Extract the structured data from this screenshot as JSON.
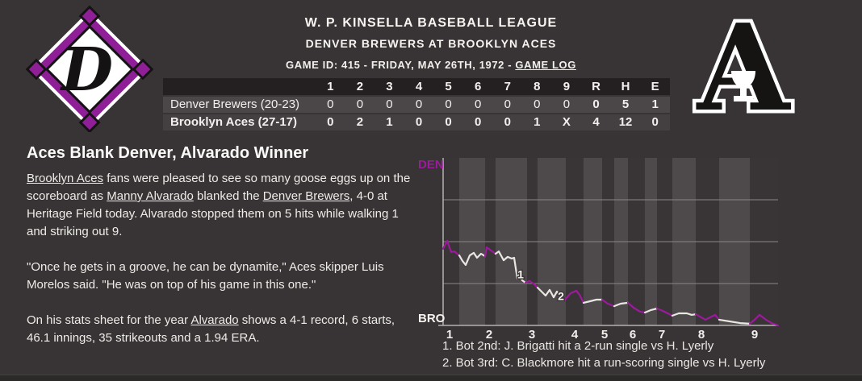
{
  "header": {
    "league_title": "W. P. KINSELLA BASEBALL LEAGUE",
    "matchup": "DENVER BREWERS AT BROOKLYN ACES",
    "game_info_prefix": "GAME ID: 415 - FRIDAY, MAY 26TH, 1972 - ",
    "game_log_link": "GAME LOG"
  },
  "logos": {
    "away_team": "Denver Brewers",
    "away_letter": "D",
    "away_color": "#8e1f96",
    "home_team": "Brooklyn Aces",
    "home_letter": "A"
  },
  "scoreboard": {
    "columns": [
      "1",
      "2",
      "3",
      "4",
      "5",
      "6",
      "7",
      "8",
      "9",
      "R",
      "H",
      "E"
    ],
    "rows": [
      {
        "team": "Denver Brewers (20-23)",
        "bold": false,
        "cells": [
          "0",
          "0",
          "0",
          "0",
          "0",
          "0",
          "0",
          "0",
          "0",
          "0",
          "5",
          "1"
        ]
      },
      {
        "team": "Brooklyn Aces (27-17)",
        "bold": true,
        "cells": [
          "0",
          "2",
          "1",
          "0",
          "0",
          "0",
          "0",
          "1",
          "X",
          "4",
          "12",
          "0"
        ]
      }
    ]
  },
  "article": {
    "headline": "Aces Blank Denver, Alvarado Winner",
    "paragraphs": [
      [
        {
          "text": "Brooklyn Aces",
          "link": true
        },
        {
          "text": " fans were pleased to see so many goose eggs up on the scoreboard as "
        },
        {
          "text": "Manny Alvarado",
          "link": true
        },
        {
          "text": " blanked the "
        },
        {
          "text": "Denver Brewers",
          "link": true
        },
        {
          "text": ", 4-0 at Heritage Field today. Alvarado stopped them on 5 hits while walking 1 and striking out 9."
        }
      ],
      [
        {
          "text": "\"Once he gets in a groove, he can be dynamite,\" Aces skipper Luis Morelos said. \"He was on top of his game in this one.\""
        }
      ],
      [
        {
          "text": "On his stats sheet for the year "
        },
        {
          "text": "Alvarado",
          "link": true
        },
        {
          "text": " shows a 4-1 record, 6 starts, 46.1 innings, 35 strikeouts and a 1.94 ERA."
        }
      ]
    ]
  },
  "chart_data": {
    "type": "line",
    "title": "Win probability by play",
    "y_top_label": "DEN",
    "y_bottom_label": "BRO",
    "y_axis": "DEN win probability %, top = DEN 100%, bottom = BRO 100%",
    "x_axis": "Innings 1-9, width proportional to plays",
    "x_max": 415,
    "wp_gridlines": [
      25,
      50,
      75
    ],
    "colors": {
      "den_line": "#9c1a9c",
      "bro_line": "#e9e7e4",
      "band_top": "#393536",
      "band_bottom": "#4e4a4b",
      "grid": "#8a8787",
      "axis": "#b3b0b0",
      "tick_text": "#f2f0ed",
      "bro_label": "#f5f3f0"
    },
    "x_ticks": [
      {
        "label": "1",
        "x": 5
      },
      {
        "label": "2",
        "x": 54
      },
      {
        "label": "3",
        "x": 107
      },
      {
        "label": "4",
        "x": 160
      },
      {
        "label": "5",
        "x": 197
      },
      {
        "label": "6",
        "x": 232
      },
      {
        "label": "7",
        "x": 268
      },
      {
        "label": "8",
        "x": 317
      },
      {
        "label": "9",
        "x": 383
      }
    ],
    "segments": [
      {
        "half": "Top 1",
        "batting": "DEN",
        "x_start": 0,
        "x_end": 20,
        "points": [
          [
            0,
            45.7
          ],
          [
            5,
            50.5
          ],
          [
            10,
            43.8
          ],
          [
            14,
            44.2
          ],
          [
            20,
            41.8
          ]
        ]
      },
      {
        "half": "Bot 1",
        "batting": "BRO",
        "x_start": 20,
        "x_end": 52,
        "points": [
          [
            24,
            38.5
          ],
          [
            28,
            36.1
          ],
          [
            33,
            41.8
          ],
          [
            38,
            43.3
          ],
          [
            42,
            40.4
          ],
          [
            47,
            42.8
          ],
          [
            52,
            41.3
          ]
        ]
      },
      {
        "half": "Top 2",
        "batting": "DEN",
        "x_start": 52,
        "x_end": 65,
        "points": [
          [
            54,
            46.6
          ],
          [
            58,
            45.2
          ],
          [
            65,
            42.8
          ]
        ]
      },
      {
        "half": "Bot 2",
        "batting": "BRO",
        "x_start": 65,
        "x_end": 104,
        "points": [
          [
            69,
            44.2
          ],
          [
            75,
            38.9
          ],
          [
            80,
            40.9
          ],
          [
            85,
            39.9
          ],
          [
            88,
            40.4
          ],
          [
            92,
            27.9
          ],
          [
            94,
            30.8
          ],
          [
            98,
            26.9
          ],
          [
            102,
            25.5
          ]
        ]
      },
      {
        "half": "Top 3",
        "batting": "DEN",
        "x_start": 104,
        "x_end": 117,
        "points": [
          [
            107,
            26.5
          ],
          [
            112,
            25.0
          ],
          [
            117,
            22.6
          ]
        ]
      },
      {
        "half": "Bot 3",
        "batting": "BRO",
        "x_start": 117,
        "x_end": 152,
        "points": [
          [
            122,
            20.2
          ],
          [
            127,
            17.8
          ],
          [
            132,
            21.2
          ],
          [
            137,
            16.8
          ],
          [
            141,
            20.2
          ],
          [
            146,
            16.3
          ],
          [
            151,
            15.4
          ]
        ]
      },
      {
        "half": "Top 4",
        "batting": "DEN",
        "x_start": 152,
        "x_end": 174,
        "points": [
          [
            158,
            19.2
          ],
          [
            165,
            20.7
          ],
          [
            169,
            18.3
          ],
          [
            174,
            13.5
          ]
        ]
      },
      {
        "half": "Bot 4",
        "batting": "BRO",
        "x_start": 174,
        "x_end": 197,
        "points": [
          [
            182,
            14.4
          ],
          [
            190,
            15.4
          ],
          [
            197,
            15.4
          ]
        ]
      },
      {
        "half": "Top 5",
        "batting": "DEN",
        "x_start": 197,
        "x_end": 212,
        "points": [
          [
            204,
            13.0
          ],
          [
            212,
            11.5
          ]
        ]
      },
      {
        "half": "Bot 5",
        "batting": "BRO",
        "x_start": 212,
        "x_end": 229,
        "points": [
          [
            220,
            13.0
          ],
          [
            229,
            13.5
          ]
        ]
      },
      {
        "half": "Top 6",
        "batting": "DEN",
        "x_start": 229,
        "x_end": 250,
        "points": [
          [
            236,
            10.6
          ],
          [
            244,
            8.2
          ],
          [
            250,
            7.7
          ]
        ]
      },
      {
        "half": "Bot 6",
        "batting": "BRO",
        "x_start": 250,
        "x_end": 265,
        "points": [
          [
            257,
            9.1
          ],
          [
            265,
            10.1
          ]
        ]
      },
      {
        "half": "Top 7",
        "batting": "DEN",
        "x_start": 265,
        "x_end": 284,
        "points": [
          [
            272,
            8.7
          ],
          [
            284,
            5.8
          ]
        ]
      },
      {
        "half": "Bot 7",
        "batting": "BRO",
        "x_start": 284,
        "x_end": 313,
        "points": [
          [
            292,
            7.2
          ],
          [
            302,
            7.2
          ],
          [
            308,
            6.3
          ],
          [
            313,
            6.7
          ]
        ]
      },
      {
        "half": "Top 8",
        "batting": "DEN",
        "x_start": 313,
        "x_end": 342,
        "points": [
          [
            325,
            3.4
          ],
          [
            337,
            6.3
          ],
          [
            342,
            3.4
          ]
        ]
      },
      {
        "half": "Bot 8",
        "batting": "BRO",
        "x_start": 342,
        "x_end": 380,
        "points": [
          [
            355,
            2.4
          ],
          [
            368,
            1.4
          ],
          [
            380,
            1.0
          ]
        ]
      },
      {
        "half": "Top 9",
        "batting": "DEN",
        "x_start": 380,
        "x_end": 415,
        "points": [
          [
            386,
            3.4
          ],
          [
            392,
            6.3
          ],
          [
            400,
            3.4
          ],
          [
            407,
            1.4
          ],
          [
            415,
            0.0
          ]
        ]
      }
    ],
    "annotations": [
      {
        "label": "1",
        "x": 96,
        "wp": 30.5
      },
      {
        "label": "2",
        "x": 146,
        "wp": 17.5
      }
    ],
    "notes": [
      "1. Bot 2nd: J. Brigatti hit a 2-run single vs H. Lyerly",
      "2. Bot 3rd: C. Blackmore hit a run-scoring single vs H. Lyerly"
    ]
  }
}
